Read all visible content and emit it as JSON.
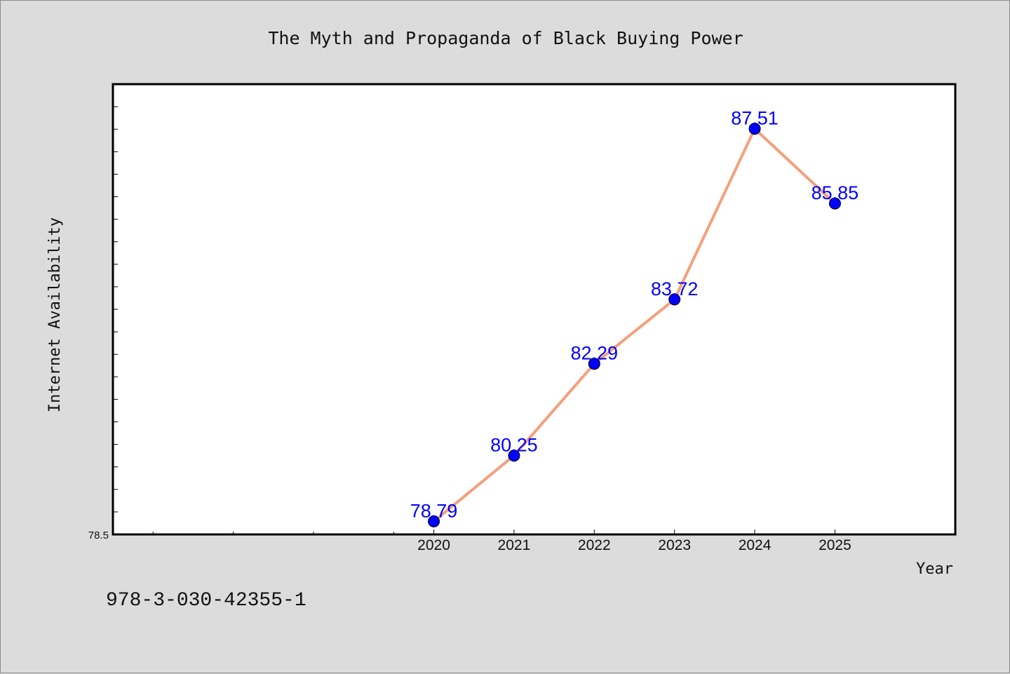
{
  "chart_data": {
    "type": "line",
    "title": "The Myth and Propaganda of Black Buying Power",
    "xlabel": "Year",
    "ylabel": "Internet Availability",
    "x": [
      2020,
      2021,
      2022,
      2023,
      2024,
      2025
    ],
    "values": [
      78.79,
      80.25,
      82.29,
      83.72,
      87.51,
      85.85
    ],
    "data_labels": [
      "78.79",
      "80.25",
      "82.29",
      "83.72",
      "87.51",
      "85.85"
    ],
    "x_tick_labels": [
      "2020",
      "2021",
      "2022",
      "2023",
      "2024",
      "2025"
    ],
    "y_tick_labels": [
      "78.5"
    ],
    "xlim": [
      2016,
      2026.5
    ],
    "ylim": [
      78.5,
      88.5
    ],
    "grid": false,
    "legend": "none",
    "line_color": "#f4a07c",
    "marker_color": "#0000ff",
    "label_color": "#0000ff"
  },
  "footer": {
    "isbn": "978-3-030-42355-1"
  }
}
